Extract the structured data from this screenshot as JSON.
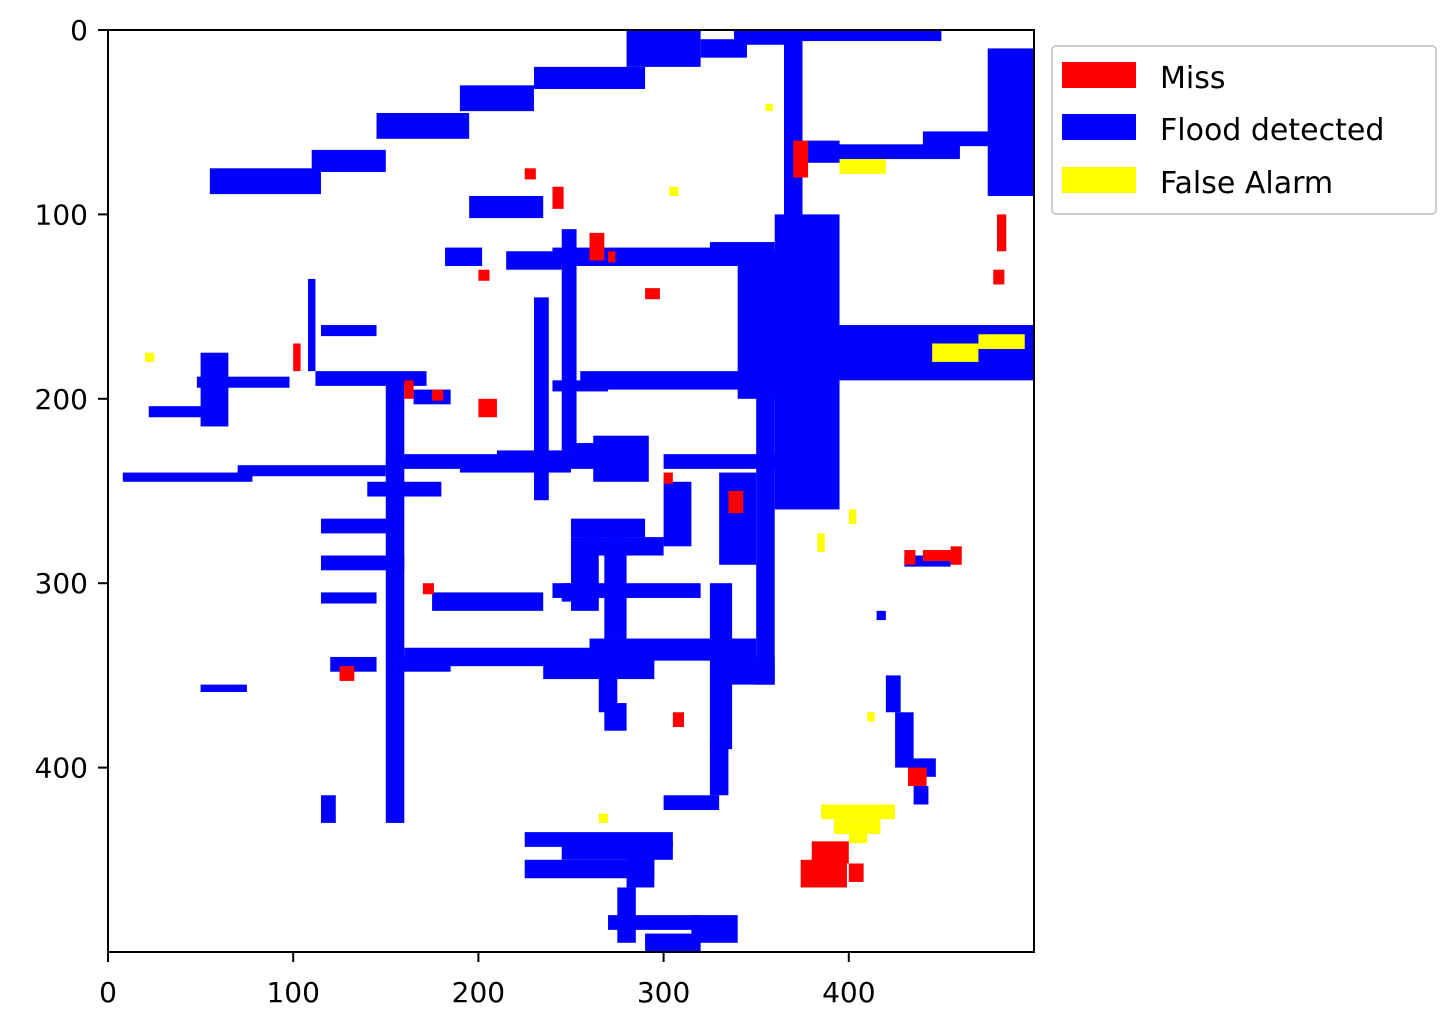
{
  "chart_data": {
    "type": "heatmap",
    "description": "flood detection classification map",
    "xlim": [
      0,
      500
    ],
    "ylim": [
      500,
      0
    ],
    "y_inverted": true,
    "xticks": [
      0,
      100,
      200,
      300,
      400
    ],
    "yticks": [
      0,
      100,
      200,
      300,
      400
    ],
    "grid": false,
    "legend_position": "outside-top-right",
    "legend": [
      {
        "name": "Miss",
        "color": "#ff0000"
      },
      {
        "name": "Flood detected",
        "color": "#0000ff"
      },
      {
        "name": "False Alarm",
        "color": "#ffff00"
      }
    ],
    "regions": {
      "flood_detected": [
        [
          8,
          240,
          70,
          5
        ],
        [
          70,
          236,
          80,
          6
        ],
        [
          150,
          232,
          60,
          6
        ],
        [
          210,
          228,
          40,
          6
        ],
        [
          250,
          224,
          20,
          6
        ],
        [
          48,
          188,
          50,
          6
        ],
        [
          50,
          175,
          15,
          40
        ],
        [
          22,
          204,
          30,
          6
        ],
        [
          55,
          75,
          60,
          14
        ],
        [
          110,
          65,
          40,
          12
        ],
        [
          145,
          45,
          50,
          14
        ],
        [
          190,
          30,
          40,
          14
        ],
        [
          230,
          20,
          60,
          12
        ],
        [
          280,
          0,
          40,
          20
        ],
        [
          320,
          5,
          25,
          10
        ],
        [
          338,
          0,
          30,
          8
        ],
        [
          350,
          0,
          100,
          6
        ],
        [
          365,
          5,
          10,
          100
        ],
        [
          370,
          60,
          25,
          12
        ],
        [
          390,
          62,
          70,
          8
        ],
        [
          475,
          10,
          25,
          80
        ],
        [
          440,
          55,
          40,
          8
        ],
        [
          485,
          55,
          15,
          15
        ],
        [
          360,
          100,
          35,
          160
        ],
        [
          360,
          160,
          140,
          30
        ],
        [
          340,
          120,
          30,
          80
        ],
        [
          325,
          115,
          35,
          12
        ],
        [
          240,
          118,
          100,
          10
        ],
        [
          215,
          120,
          30,
          10
        ],
        [
          195,
          90,
          40,
          12
        ],
        [
          182,
          118,
          20,
          10
        ],
        [
          230,
          145,
          8,
          110
        ],
        [
          245,
          108,
          8,
          120
        ],
        [
          108,
          135,
          4,
          50
        ],
        [
          115,
          160,
          30,
          6
        ],
        [
          112,
          185,
          60,
          8
        ],
        [
          150,
          190,
          10,
          240
        ],
        [
          165,
          195,
          20,
          8
        ],
        [
          160,
          230,
          80,
          6
        ],
        [
          190,
          232,
          60,
          8
        ],
        [
          240,
          228,
          30,
          10
        ],
        [
          140,
          245,
          40,
          8
        ],
        [
          115,
          265,
          40,
          8
        ],
        [
          115,
          285,
          45,
          8
        ],
        [
          115,
          305,
          30,
          6
        ],
        [
          155,
          340,
          30,
          8
        ],
        [
          160,
          335,
          100,
          10
        ],
        [
          260,
          330,
          90,
          12
        ],
        [
          235,
          340,
          60,
          12
        ],
        [
          250,
          265,
          40,
          10
        ],
        [
          255,
          275,
          45,
          10
        ],
        [
          245,
          300,
          20,
          10
        ],
        [
          175,
          305,
          60,
          10
        ],
        [
          240,
          300,
          80,
          8
        ],
        [
          250,
          275,
          15,
          40
        ],
        [
          268,
          275,
          12,
          55
        ],
        [
          262,
          220,
          30,
          25
        ],
        [
          255,
          185,
          120,
          10
        ],
        [
          240,
          190,
          30,
          6
        ],
        [
          300,
          230,
          70,
          8
        ],
        [
          350,
          195,
          10,
          160
        ],
        [
          300,
          245,
          15,
          35
        ],
        [
          330,
          240,
          20,
          50
        ],
        [
          325,
          300,
          12,
          90
        ],
        [
          330,
          340,
          30,
          15
        ],
        [
          325,
          385,
          10,
          30
        ],
        [
          300,
          415,
          30,
          8
        ],
        [
          225,
          435,
          80,
          8
        ],
        [
          225,
          450,
          70,
          10
        ],
        [
          245,
          440,
          60,
          10
        ],
        [
          275,
          465,
          10,
          30
        ],
        [
          270,
          480,
          50,
          8
        ],
        [
          290,
          490,
          30,
          10
        ],
        [
          315,
          480,
          25,
          15
        ],
        [
          280,
          440,
          15,
          25
        ],
        [
          265,
          345,
          10,
          25
        ],
        [
          268,
          365,
          12,
          15
        ],
        [
          120,
          340,
          25,
          8
        ],
        [
          50,
          355,
          25,
          4
        ],
        [
          115,
          415,
          8,
          15
        ],
        [
          420,
          350,
          8,
          20
        ],
        [
          425,
          370,
          10,
          30
        ],
        [
          432,
          395,
          15,
          10
        ],
        [
          435,
          410,
          8,
          10
        ],
        [
          430,
          285,
          25,
          6
        ],
        [
          415,
          315,
          5,
          5
        ]
      ],
      "miss": [
        [
          374,
          450,
          25,
          15
        ],
        [
          380,
          440,
          20,
          12
        ],
        [
          400,
          452,
          8,
          10
        ],
        [
          430,
          282,
          6,
          8
        ],
        [
          440,
          282,
          20,
          6
        ],
        [
          455,
          280,
          6,
          10
        ],
        [
          432,
          400,
          10,
          10
        ],
        [
          370,
          60,
          8,
          20
        ],
        [
          100,
          170,
          4,
          15
        ],
        [
          160,
          190,
          5,
          10
        ],
        [
          200,
          200,
          10,
          10
        ],
        [
          260,
          110,
          8,
          15
        ],
        [
          270,
          120,
          4,
          6
        ],
        [
          300,
          240,
          5,
          6
        ],
        [
          305,
          370,
          6,
          8
        ],
        [
          335,
          250,
          8,
          12
        ],
        [
          290,
          140,
          8,
          6
        ],
        [
          175,
          195,
          6,
          6
        ],
        [
          125,
          345,
          8,
          8
        ],
        [
          170,
          300,
          6,
          6
        ],
        [
          480,
          100,
          5,
          20
        ],
        [
          478,
          130,
          6,
          8
        ],
        [
          200,
          130,
          6,
          6
        ],
        [
          225,
          75,
          6,
          6
        ],
        [
          240,
          85,
          6,
          12
        ]
      ],
      "false_alarm": [
        [
          385,
          420,
          40,
          8
        ],
        [
          392,
          428,
          25,
          8
        ],
        [
          400,
          435,
          10,
          6
        ],
        [
          445,
          170,
          25,
          10
        ],
        [
          470,
          165,
          25,
          8
        ],
        [
          395,
          70,
          25,
          8
        ],
        [
          20,
          175,
          5,
          5
        ],
        [
          265,
          425,
          5,
          5
        ],
        [
          303,
          85,
          5,
          5
        ],
        [
          355,
          40,
          4,
          4
        ],
        [
          400,
          260,
          4,
          8
        ],
        [
          383,
          273,
          4,
          10
        ],
        [
          410,
          370,
          4,
          5
        ]
      ]
    }
  }
}
